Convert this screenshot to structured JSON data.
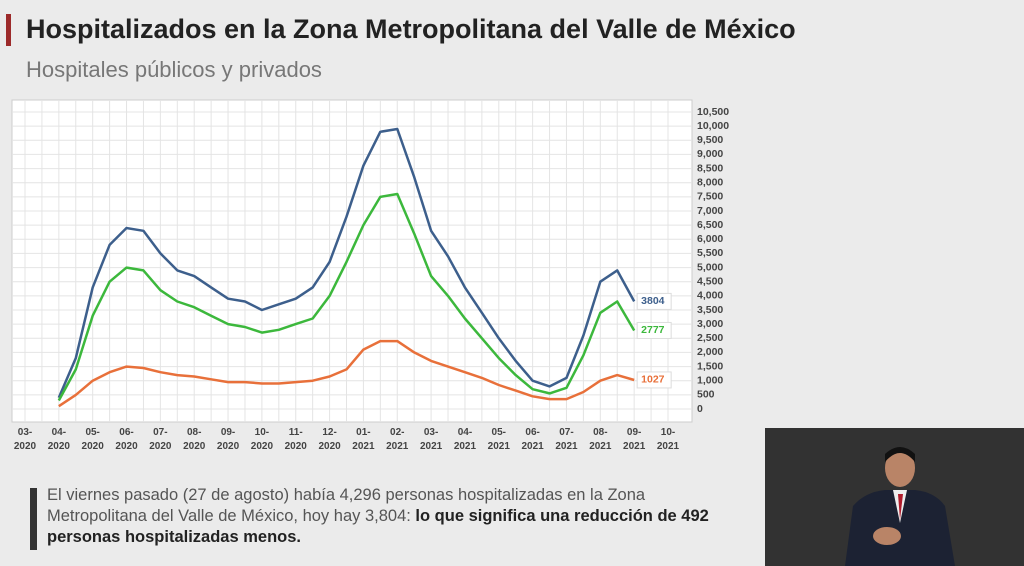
{
  "header": {
    "title": "Hospitalizados en la Zona Metropolitana del Valle de México",
    "subtitle": "Hospitales públicos y privados"
  },
  "chart_data": {
    "type": "line",
    "categories": [
      "03-\n2020",
      null,
      "04-\n2020",
      null,
      "05-\n2020",
      null,
      "06-\n2020",
      null,
      "07-\n2020",
      null,
      "08-\n2020",
      null,
      "09-\n2020",
      null,
      "10-\n2020",
      null,
      "11-\n2020",
      null,
      "12-\n2020",
      null,
      "01-\n2021",
      null,
      "02-\n2021",
      null,
      "03-\n2021",
      null,
      "04-\n2021",
      null,
      "05-\n2021",
      null,
      "06-\n2021",
      null,
      "07-\n2021",
      null,
      "08-\n2021",
      null,
      "09-\n2021",
      null,
      "10-\n2021"
    ],
    "series": [
      {
        "color": "#3d5f8c",
        "values": [
          null,
          null,
          400,
          1800,
          4300,
          5800,
          6400,
          6300,
          5500,
          4900,
          4700,
          4300,
          3900,
          3800,
          3500,
          3700,
          3900,
          4300,
          5200,
          6800,
          8600,
          9800,
          9900,
          8200,
          6300,
          5400,
          4300,
          3400,
          2500,
          1700,
          1000,
          800,
          1100,
          2600,
          4500,
          4900,
          3804,
          null,
          null
        ]
      },
      {
        "color": "#3cb83c",
        "values": [
          null,
          null,
          300,
          1400,
          3300,
          4500,
          5000,
          4900,
          4200,
          3800,
          3600,
          3300,
          3000,
          2900,
          2700,
          2800,
          3000,
          3200,
          4000,
          5200,
          6500,
          7500,
          7600,
          6200,
          4700,
          4000,
          3200,
          2500,
          1800,
          1200,
          700,
          550,
          750,
          1900,
          3400,
          3800,
          2777,
          null,
          null
        ]
      },
      {
        "color": "#e8703a",
        "values": [
          null,
          null,
          100,
          500,
          1000,
          1300,
          1500,
          1450,
          1300,
          1200,
          1150,
          1050,
          950,
          950,
          900,
          900,
          950,
          1000,
          1150,
          1400,
          2100,
          2400,
          2400,
          2000,
          1700,
          1500,
          1300,
          1100,
          850,
          650,
          450,
          350,
          350,
          600,
          1000,
          1200,
          1027,
          null,
          null
        ]
      }
    ],
    "ylim": [
      0,
      10500
    ],
    "yticks": [
      0,
      500,
      {
        "value": 1000,
        "label": "1,000"
      },
      {
        "value": 1500,
        "label": "1,500"
      },
      {
        "value": 2000,
        "label": "2,000"
      },
      {
        "value": 2500,
        "label": "2,500"
      },
      {
        "value": 3000,
        "label": "3,000"
      },
      {
        "value": 3500,
        "label": "3,500"
      },
      {
        "value": 4000,
        "label": "4,000"
      },
      {
        "value": 4500,
        "label": "4,500"
      },
      {
        "value": 5000,
        "label": "5,000"
      },
      {
        "value": 5500,
        "label": "5,500"
      },
      {
        "value": 6000,
        "label": "6,000"
      },
      {
        "value": 6500,
        "label": "6,500"
      },
      {
        "value": 7000,
        "label": "7,000"
      },
      {
        "value": 7500,
        "label": "7,500"
      },
      {
        "value": 8000,
        "label": "8,000"
      },
      {
        "value": 8500,
        "label": "8,500"
      },
      {
        "value": 9000,
        "label": "9,000"
      },
      {
        "value": 9500,
        "label": "9,500"
      },
      {
        "value": 10000,
        "label": "10,000"
      },
      {
        "value": 10500,
        "label": "10,500"
      }
    ],
    "grid": true
  },
  "note": {
    "text": "El viernes pasado (27 de agosto) había 4,296 personas hospitalizadas en la Zona Metropolitana del Valle de México, hoy hay 3,804: ",
    "bold": "lo que significa una reducción de 492 personas hospitalizadas menos."
  }
}
